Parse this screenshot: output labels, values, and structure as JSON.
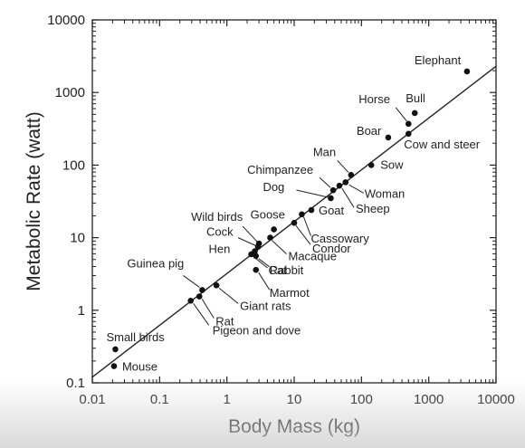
{
  "chart_data": {
    "type": "scatter",
    "x_scale": "log",
    "y_scale": "log",
    "xlabel": "Body Mass (kg)",
    "ylabel": "Metabolic Rate (watt)",
    "xlim": [
      0.01,
      10000
    ],
    "ylim": [
      0.1,
      10000
    ],
    "x_ticks": [
      "0.01",
      "0.1",
      "1",
      "10",
      "100",
      "1000",
      "10000"
    ],
    "y_ticks": [
      "0.1",
      "1",
      "10",
      "100",
      "1000",
      "10000"
    ],
    "grid": false,
    "fit_line": {
      "x": [
        0.01,
        10000
      ],
      "y": [
        0.12,
        2300
      ]
    },
    "points": [
      {
        "label": "Elephant",
        "x": 3700,
        "y": 1950
      },
      {
        "label": "Bull",
        "x": 620,
        "y": 520
      },
      {
        "label": "Horse",
        "x": 500,
        "y": 370
      },
      {
        "label": "Boar",
        "x": 250,
        "y": 240
      },
      {
        "label": "Cow and steer",
        "x": 500,
        "y": 270
      },
      {
        "label": "Sow",
        "x": 140,
        "y": 100
      },
      {
        "label": "Man",
        "x": 70,
        "y": 73
      },
      {
        "label": "Woman",
        "x": 58,
        "y": 58
      },
      {
        "label": "Sheep",
        "x": 47,
        "y": 52
      },
      {
        "label": "Chimpanzee",
        "x": 38,
        "y": 45
      },
      {
        "label": "Dog",
        "x": 35,
        "y": 35
      },
      {
        "label": "Goat",
        "x": 18,
        "y": 24
      },
      {
        "label": "Cassowary",
        "x": 13,
        "y": 21
      },
      {
        "label": "Condor",
        "x": 10,
        "y": 16
      },
      {
        "label": "Goose",
        "x": 5,
        "y": 13
      },
      {
        "label": "Macaque",
        "x": 4.4,
        "y": 10
      },
      {
        "label": "Wild birds",
        "x": 3.0,
        "y": 8.3
      },
      {
        "label": "Cock",
        "x": 2.9,
        "y": 7.5
      },
      {
        "label": "Hen",
        "x": 2.6,
        "y": 6.5
      },
      {
        "label": "Cat",
        "x": 2.3,
        "y": 5.9
      },
      {
        "label": "Rabbit",
        "x": 2.7,
        "y": 5.6
      },
      {
        "label": "Marmot",
        "x": 2.7,
        "y": 3.6
      },
      {
        "label": "Guinea pig",
        "x": 0.43,
        "y": 1.9
      },
      {
        "label": "Giant rats",
        "x": 0.7,
        "y": 2.2
      },
      {
        "label": "Rat",
        "x": 0.39,
        "y": 1.55
      },
      {
        "label": "Pigeon and dove",
        "x": 0.29,
        "y": 1.35
      },
      {
        "label": "Small birds",
        "x": 0.022,
        "y": 0.29
      },
      {
        "label": "Mouse",
        "x": 0.021,
        "y": 0.17
      }
    ]
  }
}
